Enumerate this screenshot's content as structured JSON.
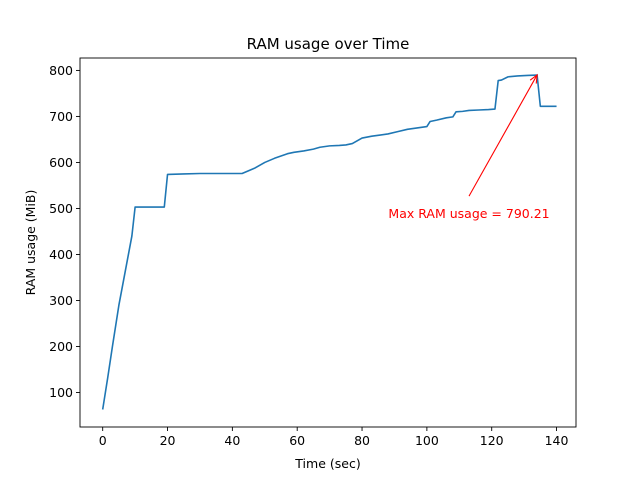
{
  "chart_data": {
    "type": "line",
    "title": "RAM usage over Time",
    "xlabel": "Time (sec)",
    "ylabel": "RAM usage (MiB)",
    "xlim": [
      -7,
      146
    ],
    "ylim": [
      25,
      827
    ],
    "xticks": [
      0,
      20,
      40,
      60,
      80,
      100,
      120,
      140
    ],
    "yticks": [
      100,
      200,
      300,
      400,
      500,
      600,
      700,
      800
    ],
    "grid": false,
    "line_color": "#1f77b4",
    "x": [
      0,
      1.5,
      3,
      5,
      7,
      9,
      10,
      13,
      16,
      19,
      20,
      25,
      30,
      35,
      40,
      43,
      45,
      47,
      50,
      53,
      55,
      57,
      59,
      62,
      65,
      67,
      70,
      73,
      75,
      77,
      80,
      83,
      85,
      88,
      91,
      94,
      97,
      100,
      101,
      103,
      106,
      108,
      109,
      111,
      113,
      116,
      119,
      121,
      122,
      123,
      125,
      128,
      131,
      134,
      135,
      137,
      140
    ],
    "y": [
      63,
      130,
      200,
      290,
      365,
      440,
      503,
      503,
      503,
      503,
      574,
      575,
      576,
      576,
      576,
      576,
      582,
      588,
      600,
      609,
      614,
      619,
      622,
      625,
      629,
      633,
      636,
      637,
      638,
      641,
      653,
      657,
      659,
      662,
      667,
      672,
      675,
      678,
      689,
      692,
      697,
      699,
      710,
      711,
      713,
      714,
      715,
      716,
      778,
      779,
      786,
      788,
      789,
      790,
      722,
      722,
      722
    ],
    "annotation": {
      "text": "Max RAM usage = 790.21",
      "color": "#ff0000",
      "xy": [
        134,
        790.21
      ],
      "xytext": [
        113,
        505
      ]
    }
  }
}
